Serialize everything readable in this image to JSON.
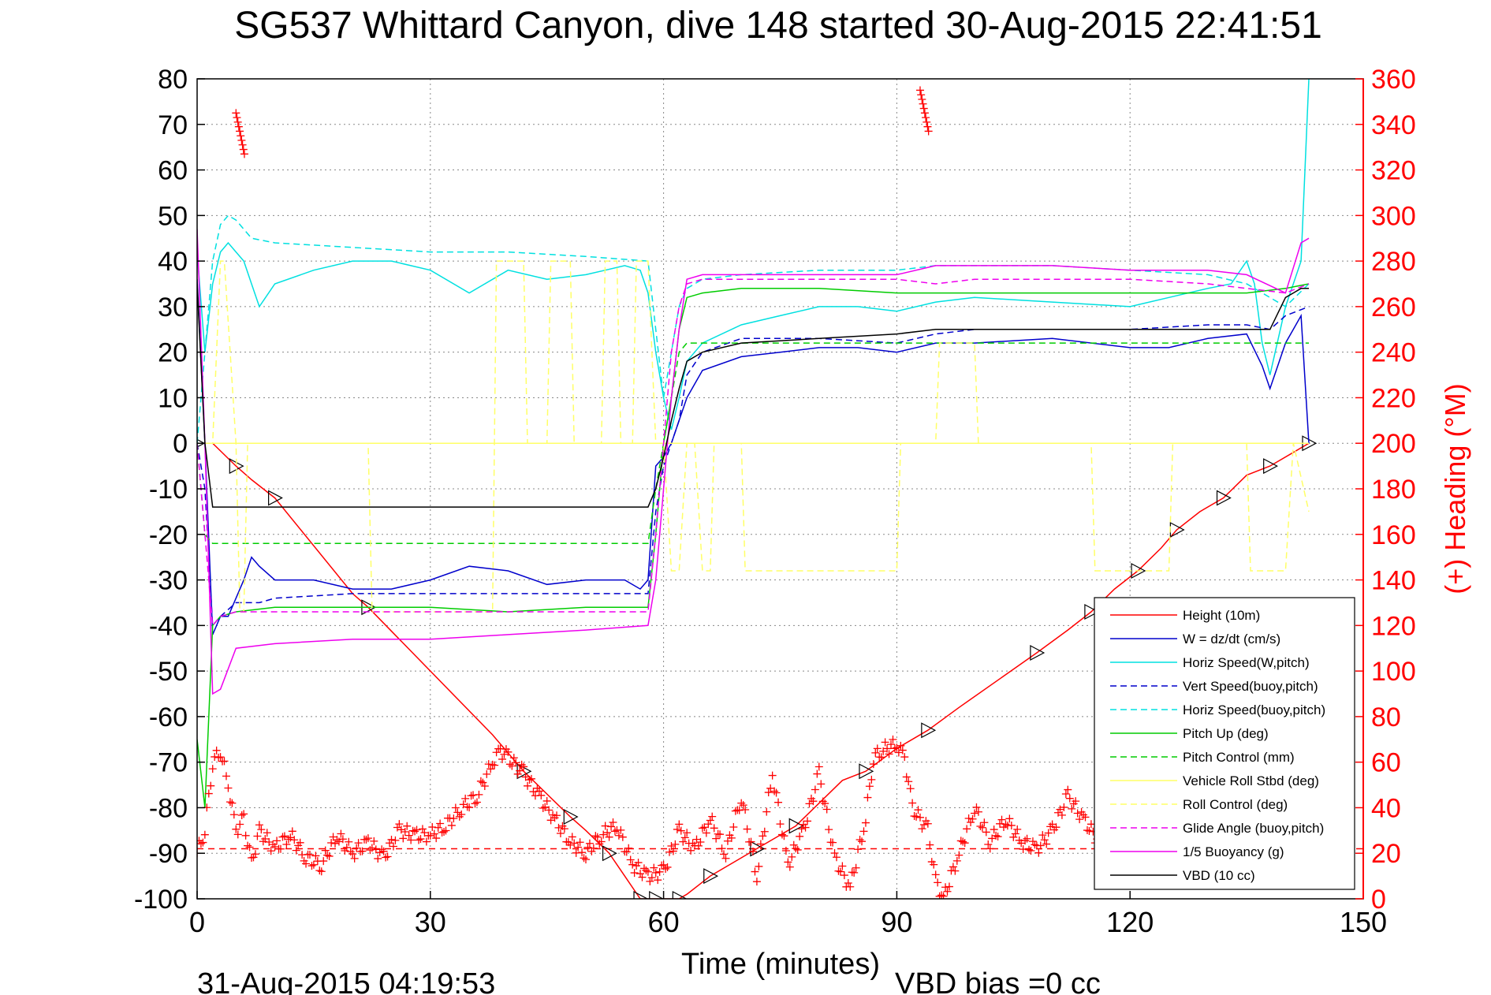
{
  "chart_data": {
    "type": "line",
    "title": "SG537 Whittard Canyon, dive 148 started 30-Aug-2015 22:41:51",
    "xlabel": "Time (minutes)",
    "ylabel_right": "(+) Heading (°M)",
    "footer_left": "31-Aug-2015 04:19:53",
    "footer_right": "VBD bias =0 cc",
    "xlim": [
      0,
      150
    ],
    "ylim_left": [
      -100,
      80
    ],
    "ylim_right": [
      0,
      360
    ],
    "x_ticks": [
      "0",
      "30",
      "60",
      "90",
      "120",
      "150"
    ],
    "y_ticks_left": [
      "80",
      "70",
      "60",
      "50",
      "40",
      "30",
      "20",
      "10",
      "0",
      "-10",
      "-20",
      "-30",
      "-40",
      "-50",
      "-60",
      "-70",
      "-80",
      "-90",
      "-100"
    ],
    "y_ticks_right": [
      "360",
      "340",
      "320",
      "300",
      "280",
      "260",
      "240",
      "220",
      "200",
      "180",
      "160",
      "140",
      "120",
      "100",
      "80",
      "60",
      "40",
      "20",
      "0"
    ],
    "grid": true,
    "legend_position": "bottom-right",
    "colors": {
      "heading": "#ff0000",
      "right_axis": "#ff0000",
      "height": "#ff0000",
      "w": "#0000cc",
      "horiz_speed": "#00e0e0",
      "pitch": "#00cc00",
      "roll": "#ffff66",
      "glide": "#ee00ee",
      "buoyancy": "#ee00ee",
      "vbd": "#000000"
    },
    "series": [
      {
        "name": "Height (10m)",
        "style": "solid",
        "color": "#ff0000",
        "marker": "triangle",
        "x": [
          0,
          2,
          5,
          7,
          10,
          20,
          22,
          38,
          42,
          45,
          48,
          50,
          53,
          55,
          57,
          58,
          59,
          60,
          62,
          63,
          66,
          70,
          72,
          75,
          77,
          83,
          86,
          90,
          94,
          98,
          108,
          112,
          115,
          118,
          121,
          124,
          126,
          129,
          132,
          135,
          138,
          141,
          143
        ],
        "y": [
          0,
          0,
          -5,
          -8,
          -12,
          -33,
          -36,
          -64,
          -72,
          -77,
          -82,
          -85,
          -90,
          -95,
          -100,
          -100,
          -100,
          -100,
          -100,
          -99,
          -95,
          -91,
          -89,
          -86,
          -84,
          -74,
          -72,
          -67,
          -63,
          -58,
          -46,
          -41,
          -37,
          -32,
          -28,
          -23,
          -19,
          -15,
          -12,
          -7,
          -5,
          -2,
          0
        ]
      },
      {
        "name": "W = dz/dt (cm/s)",
        "style": "solid",
        "color": "#0000cc",
        "x": [
          0,
          1,
          2,
          3,
          4,
          5,
          6,
          7,
          8,
          10,
          15,
          20,
          25,
          30,
          35,
          40,
          45,
          50,
          55,
          57,
          58,
          59,
          60,
          61,
          62,
          63,
          64,
          65,
          70,
          75,
          80,
          85,
          90,
          95,
          100,
          110,
          120,
          125,
          130,
          135,
          137,
          138,
          140,
          141,
          142,
          143
        ],
        "y": [
          36,
          0,
          -42,
          -38,
          -38,
          -34,
          -30,
          -25,
          -27,
          -30,
          -30,
          -32,
          -32,
          -30,
          -27,
          -28,
          -31,
          -30,
          -30,
          -32,
          -30,
          -5,
          -3,
          0,
          5,
          10,
          13,
          16,
          19,
          20,
          21,
          21,
          20,
          22,
          22,
          23,
          21,
          21,
          23,
          24,
          17,
          12,
          22,
          25,
          28,
          0
        ]
      },
      {
        "name": "Horiz Speed(W,pitch)",
        "style": "solid",
        "color": "#00e0e0",
        "x": [
          0,
          1,
          2,
          3,
          4,
          5,
          6,
          7,
          8,
          10,
          15,
          20,
          25,
          30,
          35,
          40,
          45,
          50,
          55,
          57,
          58,
          59,
          60,
          61,
          62,
          63,
          64,
          65,
          70,
          75,
          80,
          85,
          90,
          95,
          100,
          110,
          120,
          125,
          130,
          133,
          135,
          136,
          137,
          138,
          140,
          141,
          142,
          143
        ],
        "y": [
          42,
          20,
          35,
          42,
          44,
          42,
          40,
          35,
          30,
          35,
          38,
          40,
          40,
          38,
          33,
          38,
          36,
          37,
          39,
          38,
          33,
          20,
          10,
          3,
          10,
          18,
          20,
          22,
          26,
          28,
          30,
          30,
          29,
          31,
          32,
          31,
          30,
          32,
          34,
          35,
          40,
          35,
          22,
          15,
          30,
          35,
          40,
          80
        ]
      },
      {
        "name": "Vert Speed(buoy,pitch)",
        "style": "dashed",
        "color": "#0000cc",
        "x": [
          0,
          1,
          2,
          3,
          5,
          8,
          10,
          20,
          30,
          40,
          50,
          58,
          59,
          60,
          61,
          62,
          63,
          65,
          70,
          80,
          90,
          95,
          100,
          110,
          120,
          130,
          135,
          138,
          140,
          143
        ],
        "y": [
          0,
          -10,
          -40,
          -38,
          -35,
          -35,
          -34,
          -33,
          -33,
          -33,
          -33,
          -33,
          -15,
          -5,
          0,
          5,
          15,
          20,
          23,
          23,
          22,
          24,
          25,
          25,
          25,
          26,
          26,
          25,
          28,
          30
        ]
      },
      {
        "name": "Horiz Speed(buoy,pitch)",
        "style": "dashed",
        "color": "#00e0e0",
        "x": [
          0,
          1,
          2,
          3,
          4,
          5,
          7,
          10,
          20,
          30,
          40,
          50,
          58,
          59,
          60,
          61,
          62,
          63,
          65,
          70,
          80,
          90,
          95,
          100,
          110,
          120,
          130,
          135,
          140,
          143
        ],
        "y": [
          0,
          20,
          40,
          48,
          50,
          49,
          45,
          44,
          43,
          42,
          42,
          41,
          40,
          25,
          10,
          20,
          30,
          34,
          36,
          37,
          38,
          38,
          39,
          39,
          39,
          38,
          37,
          35,
          30,
          35
        ]
      },
      {
        "name": "Pitch Up (deg)",
        "style": "solid",
        "color": "#00cc00",
        "x": [
          0,
          1,
          2,
          3,
          5,
          10,
          20,
          30,
          40,
          50,
          55,
          58,
          59,
          60,
          61,
          62,
          63,
          65,
          70,
          80,
          90,
          95,
          100,
          110,
          120,
          130,
          135,
          140,
          143
        ],
        "y": [
          -65,
          -80,
          -40,
          -38,
          -37,
          -36,
          -36,
          -36,
          -37,
          -36,
          -36,
          -36,
          -20,
          0,
          10,
          25,
          32,
          33,
          34,
          34,
          33,
          33,
          33,
          33,
          33,
          33,
          33,
          34,
          35
        ]
      },
      {
        "name": "Pitch Control (mm)",
        "style": "dashed",
        "color": "#00cc00",
        "x": [
          0,
          1,
          2,
          5,
          10,
          20,
          30,
          40,
          50,
          58,
          59,
          60,
          61,
          62,
          63,
          65,
          70,
          80,
          90,
          95,
          100,
          110,
          120,
          130,
          135,
          140,
          143
        ],
        "y": [
          0,
          -20,
          -22,
          -22,
          -22,
          -22,
          -22,
          -22,
          -22,
          -22,
          -10,
          0,
          10,
          20,
          22,
          22,
          22,
          22,
          22,
          22,
          22,
          22,
          22,
          22,
          22,
          22,
          22
        ]
      },
      {
        "name": "Vehicle Roll Stbd (deg)",
        "style": "solid",
        "color": "#ffff66",
        "x": [
          0,
          2,
          5,
          10,
          20,
          30,
          40,
          50,
          58,
          60,
          62,
          65,
          70,
          80,
          90,
          100,
          110,
          120,
          130,
          140,
          143
        ],
        "y": [
          0,
          0,
          0,
          0,
          0,
          0,
          0,
          0,
          0,
          0,
          0,
          0,
          0,
          0,
          0,
          0,
          0,
          0,
          0,
          0,
          0
        ]
      },
      {
        "name": "Roll Control (deg)",
        "style": "dashed",
        "color": "#ffff66",
        "x": [
          0,
          2,
          3,
          3.5,
          5,
          5.5,
          6,
          6.5,
          22,
          22.5,
          38,
          38.5,
          42,
          42.5,
          45,
          45.5,
          48,
          48.5,
          52,
          52.5,
          54,
          54.5,
          56,
          56.5,
          58,
          59,
          60,
          61,
          62,
          63,
          64,
          65,
          66,
          66.5,
          70,
          70.5,
          90,
          90.5,
          95,
          95.5,
          100,
          100.5,
          115,
          115.5,
          125,
          125.5,
          135,
          135.5,
          140,
          141,
          143
        ],
        "y": [
          0,
          0,
          40,
          40,
          0,
          -37,
          -37,
          0,
          0,
          -37,
          -37,
          40,
          40,
          0,
          0,
          40,
          40,
          0,
          0,
          40,
          40,
          0,
          0,
          40,
          40,
          0,
          0,
          -28,
          -28,
          0,
          0,
          -28,
          -28,
          0,
          0,
          -28,
          -28,
          0,
          0,
          22,
          22,
          0,
          0,
          -28,
          -28,
          0,
          0,
          -28,
          -28,
          0,
          -15
        ]
      },
      {
        "name": "Glide Angle (buoy,pitch)",
        "style": "dashed",
        "color": "#ee00ee",
        "x": [
          0,
          1,
          2,
          3,
          5,
          10,
          20,
          30,
          40,
          50,
          58,
          59,
          60,
          61,
          62,
          63,
          65,
          70,
          80,
          90,
          95,
          100,
          110,
          120,
          130,
          135,
          140,
          143
        ],
        "y": [
          0,
          -20,
          -40,
          -38,
          -37,
          -37,
          -37,
          -37,
          -37,
          -37,
          -37,
          -20,
          0,
          20,
          30,
          35,
          36,
          36,
          36,
          36,
          35,
          36,
          36,
          36,
          35,
          34,
          33,
          35
        ]
      },
      {
        "name": "1/5 Buoyancy (g)",
        "style": "solid",
        "color": "#ee00ee",
        "x": [
          0,
          1,
          2,
          3,
          5,
          10,
          20,
          30,
          40,
          50,
          58,
          59,
          60,
          61,
          62,
          63,
          65,
          70,
          80,
          90,
          95,
          100,
          110,
          120,
          130,
          135,
          140,
          142,
          143
        ],
        "y": [
          47,
          0,
          -55,
          -54,
          -45,
          -44,
          -43,
          -43,
          -42,
          -41,
          -40,
          -30,
          -10,
          10,
          25,
          36,
          37,
          37,
          37,
          37,
          39,
          39,
          39,
          38,
          38,
          37,
          33,
          44,
          45
        ]
      },
      {
        "name": "VBD (10 cc)",
        "style": "solid",
        "color": "#000000",
        "x": [
          0,
          1,
          2,
          3,
          5,
          10,
          20,
          30,
          40,
          50,
          58,
          59,
          60,
          61,
          62,
          63,
          65,
          70,
          80,
          90,
          95,
          100,
          110,
          120,
          130,
          135,
          138,
          140,
          141,
          142,
          143
        ],
        "y": [
          35,
          0,
          -14,
          -14,
          -14,
          -14,
          -14,
          -14,
          -14,
          -14,
          -14,
          -10,
          -3,
          5,
          12,
          18,
          20,
          22,
          23,
          24,
          25,
          25,
          25,
          25,
          25,
          25,
          25,
          32,
          33,
          34,
          34
        ]
      }
    ],
    "heading": {
      "name": "(+) Heading (°M)",
      "axis": "right",
      "marker": "plus",
      "color": "#ff0000",
      "mean_line": 22,
      "x": [
        0,
        1,
        2,
        3,
        4,
        5,
        6,
        7,
        8,
        10,
        12,
        14,
        16,
        18,
        20,
        22,
        24,
        26,
        28,
        30,
        32,
        34,
        36,
        38,
        39,
        40,
        42,
        44,
        46,
        48,
        50,
        52,
        54,
        56,
        58,
        60,
        62,
        64,
        66,
        68,
        70,
        72,
        74,
        76,
        78,
        80,
        82,
        84,
        86,
        87,
        88,
        90,
        91,
        92,
        94,
        95,
        96,
        98,
        100,
        102,
        104,
        106,
        108,
        110,
        112,
        114,
        116,
        118,
        120
      ],
      "y": [
        20,
        30,
        60,
        65,
        50,
        30,
        35,
        15,
        30,
        22,
        28,
        18,
        15,
        28,
        20,
        25,
        18,
        30,
        28,
        28,
        32,
        40,
        45,
        60,
        65,
        62,
        55,
        45,
        35,
        25,
        20,
        28,
        32,
        15,
        10,
        12,
        30,
        22,
        35,
        20,
        45,
        10,
        55,
        15,
        30,
        55,
        18,
        5,
        35,
        62,
        65,
        68,
        62,
        40,
        30,
        8,
        0,
        20,
        40,
        25,
        35,
        25,
        22,
        30,
        45,
        35,
        25,
        40,
        50
      ]
    },
    "heading_top_fragments": {
      "x": [
        5,
        93
      ],
      "y": [
        345,
        355
      ]
    }
  }
}
